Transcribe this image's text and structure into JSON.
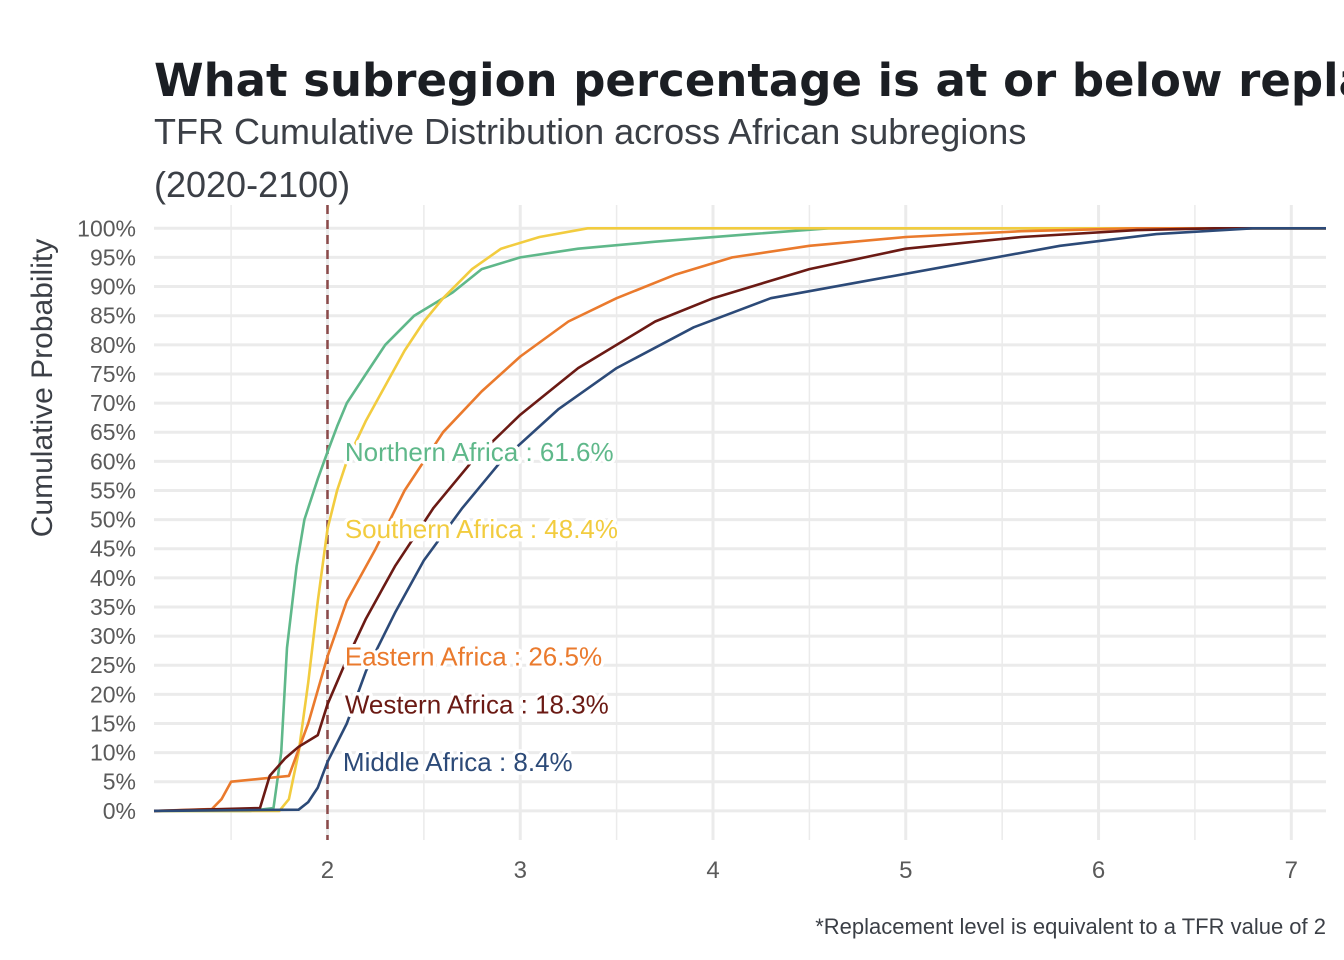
{
  "chart_data": {
    "type": "line",
    "title": "What subregion percentage is at or below replacement level?",
    "subtitle_lines": [
      "TFR Cumulative Distribution across African subregions",
      "(2020-2100)"
    ],
    "xlabel": "",
    "ylabel": "Cumulative Probability",
    "caption": "*Replacement level is equivalent to a TFR value of 2",
    "xlim": [
      1.1,
      7.18
    ],
    "ylim": [
      -0.05,
      1.04
    ],
    "x_ticks": [
      2,
      3,
      4,
      5,
      6,
      7
    ],
    "y_ticks": [
      0,
      0.05,
      0.1,
      0.15,
      0.2,
      0.25,
      0.3,
      0.35,
      0.4,
      0.45,
      0.5,
      0.55,
      0.6,
      0.65,
      0.7,
      0.75,
      0.8,
      0.85,
      0.9,
      0.95,
      1.0
    ],
    "y_tick_labels": [
      "0%",
      "5%",
      "10%",
      "15%",
      "20%",
      "25%",
      "30%",
      "35%",
      "40%",
      "45%",
      "50%",
      "55%",
      "60%",
      "65%",
      "70%",
      "75%",
      "80%",
      "85%",
      "90%",
      "95%",
      "100%"
    ],
    "grid": true,
    "reference_line": {
      "x": 2,
      "style": "dashed",
      "color": "#8b4a4a"
    },
    "series": [
      {
        "name": "Northern Africa",
        "label": "Northern Africa : 61.6%",
        "color": "#5fb88a",
        "points": [
          [
            1.1,
            0
          ],
          [
            1.6,
            0
          ],
          [
            1.72,
            0.005
          ],
          [
            1.76,
            0.1
          ],
          [
            1.79,
            0.28
          ],
          [
            1.84,
            0.42
          ],
          [
            1.88,
            0.5
          ],
          [
            1.95,
            0.57
          ],
          [
            2.0,
            0.616
          ],
          [
            2.05,
            0.66
          ],
          [
            2.1,
            0.7
          ],
          [
            2.2,
            0.75
          ],
          [
            2.3,
            0.8
          ],
          [
            2.45,
            0.85
          ],
          [
            2.65,
            0.89
          ],
          [
            2.8,
            0.93
          ],
          [
            3.0,
            0.95
          ],
          [
            3.3,
            0.965
          ],
          [
            3.7,
            0.977
          ],
          [
            4.2,
            0.99
          ],
          [
            4.6,
            1.0
          ],
          [
            7.18,
            1.0
          ]
        ]
      },
      {
        "name": "Southern Africa",
        "label": "Southern Africa : 48.4%",
        "color": "#f2cc3f",
        "points": [
          [
            1.1,
            0
          ],
          [
            1.75,
            0
          ],
          [
            1.8,
            0.02
          ],
          [
            1.85,
            0.1
          ],
          [
            1.9,
            0.22
          ],
          [
            1.95,
            0.36
          ],
          [
            2.0,
            0.484
          ],
          [
            2.05,
            0.55
          ],
          [
            2.1,
            0.6
          ],
          [
            2.2,
            0.67
          ],
          [
            2.3,
            0.73
          ],
          [
            2.4,
            0.79
          ],
          [
            2.5,
            0.84
          ],
          [
            2.6,
            0.88
          ],
          [
            2.75,
            0.93
          ],
          [
            2.9,
            0.965
          ],
          [
            3.1,
            0.985
          ],
          [
            3.35,
            1.0
          ],
          [
            7.18,
            1.0
          ]
        ]
      },
      {
        "name": "Eastern Africa",
        "label": "Eastern Africa : 26.5%",
        "color": "#ea7a2d",
        "points": [
          [
            1.1,
            0
          ],
          [
            1.4,
            0.003
          ],
          [
            1.45,
            0.02
          ],
          [
            1.5,
            0.05
          ],
          [
            1.65,
            0.055
          ],
          [
            1.8,
            0.06
          ],
          [
            1.9,
            0.15
          ],
          [
            2.0,
            0.265
          ],
          [
            2.1,
            0.36
          ],
          [
            2.25,
            0.45
          ],
          [
            2.4,
            0.55
          ],
          [
            2.6,
            0.65
          ],
          [
            2.8,
            0.72
          ],
          [
            3.0,
            0.78
          ],
          [
            3.25,
            0.84
          ],
          [
            3.5,
            0.88
          ],
          [
            3.8,
            0.92
          ],
          [
            4.1,
            0.95
          ],
          [
            4.5,
            0.97
          ],
          [
            5.0,
            0.985
          ],
          [
            5.6,
            0.995
          ],
          [
            6.2,
            1.0
          ],
          [
            7.18,
            1.0
          ]
        ]
      },
      {
        "name": "Western Africa",
        "label": "Western Africa : 18.3%",
        "color": "#6b1a14",
        "points": [
          [
            1.1,
            0
          ],
          [
            1.65,
            0.005
          ],
          [
            1.7,
            0.06
          ],
          [
            1.78,
            0.09
          ],
          [
            1.85,
            0.11
          ],
          [
            1.95,
            0.13
          ],
          [
            2.0,
            0.183
          ],
          [
            2.1,
            0.26
          ],
          [
            2.2,
            0.33
          ],
          [
            2.35,
            0.42
          ],
          [
            2.55,
            0.52
          ],
          [
            2.75,
            0.6
          ],
          [
            3.0,
            0.68
          ],
          [
            3.3,
            0.76
          ],
          [
            3.7,
            0.84
          ],
          [
            4.0,
            0.88
          ],
          [
            4.5,
            0.93
          ],
          [
            5.0,
            0.965
          ],
          [
            5.6,
            0.985
          ],
          [
            6.2,
            0.997
          ],
          [
            6.6,
            1.0
          ],
          [
            7.18,
            1.0
          ]
        ]
      },
      {
        "name": "Middle Africa",
        "label": "Middle Africa : 8.4%",
        "color": "#2c4a78",
        "points": [
          [
            1.1,
            0
          ],
          [
            1.85,
            0.002
          ],
          [
            1.9,
            0.015
          ],
          [
            1.95,
            0.04
          ],
          [
            2.0,
            0.084
          ],
          [
            2.1,
            0.15
          ],
          [
            2.2,
            0.24
          ],
          [
            2.35,
            0.34
          ],
          [
            2.5,
            0.43
          ],
          [
            2.7,
            0.52
          ],
          [
            2.9,
            0.6
          ],
          [
            3.2,
            0.69
          ],
          [
            3.5,
            0.76
          ],
          [
            3.9,
            0.83
          ],
          [
            4.3,
            0.88
          ],
          [
            4.8,
            0.91
          ],
          [
            5.3,
            0.94
          ],
          [
            5.8,
            0.97
          ],
          [
            6.3,
            0.99
          ],
          [
            6.8,
            1.0
          ],
          [
            7.18,
            1.0
          ]
        ]
      }
    ]
  }
}
